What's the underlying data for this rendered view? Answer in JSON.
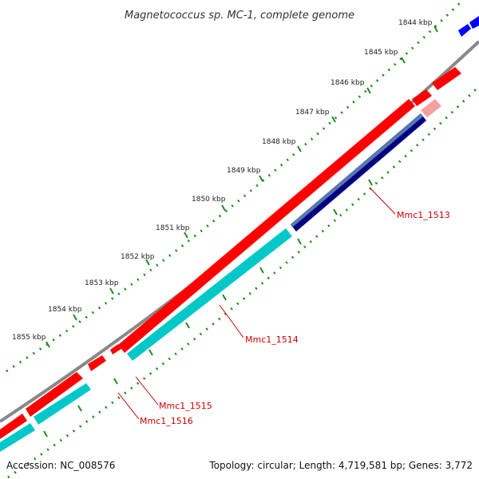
{
  "title": "Magnetococcus sp. MC-1, complete genome",
  "footer": {
    "accession": "Accession: NC_008576",
    "summary": "Topology: circular; Length: 4,719,581 bp; Genes: 3,772"
  },
  "ticks": [
    "1844 kbp",
    "1845 kbp",
    "1846 kbp",
    "1847 kbp",
    "1848 kbp",
    "1849 kbp",
    "1850 kbp",
    "1851 kbp",
    "1852 kbp",
    "1853 kbp",
    "1854 kbp",
    "1855 kbp"
  ],
  "genes": [
    "Mmc1_1513",
    "Mmc1_1514",
    "Mmc1_1515",
    "Mmc1_1516"
  ],
  "colors": {
    "backbone": "#888888",
    "forward_gene": "#ff0000",
    "forward_gene_light": "#f4a0a0",
    "reverse_cds": "#00c8c8",
    "selected_cds": "#000080",
    "selected_cds_light": "#5878b0",
    "other_feature": "#0000ff",
    "tick": "#228b22",
    "label_line": "#cc0000"
  }
}
